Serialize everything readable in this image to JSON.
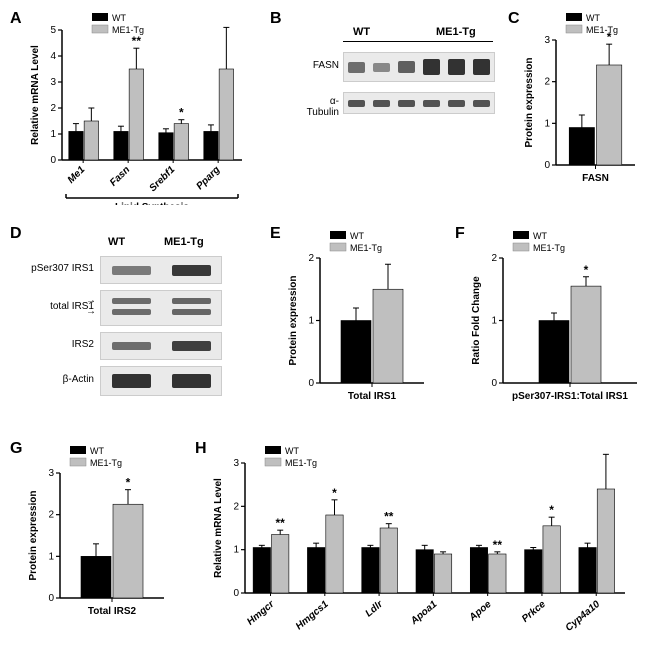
{
  "colors": {
    "wt": "#000000",
    "tg": "#bfbfbf",
    "axis": "#000000",
    "bg": "#ffffff"
  },
  "legend": {
    "wt": "WT",
    "tg": "ME1-Tg"
  },
  "panelA": {
    "label": "A",
    "ylabel": "Relative mRNA Level",
    "ymax": 5,
    "ytick": 1,
    "groups": [
      "Me1",
      "Fasn",
      "Srebf1",
      "Pparg"
    ],
    "group_label": "Lipid Synthesis",
    "wt": [
      1.1,
      1.1,
      1.05,
      1.1
    ],
    "tg": [
      1.5,
      3.5,
      1.4,
      3.5
    ],
    "wt_err": [
      0.3,
      0.2,
      0.15,
      0.25
    ],
    "tg_err": [
      0.5,
      0.8,
      0.15,
      1.6
    ],
    "sig": [
      "",
      "**",
      "*",
      ""
    ]
  },
  "panelB": {
    "label": "B",
    "groups": [
      "WT",
      "ME1-Tg"
    ],
    "rows": [
      "FASN",
      "α- Tubulin"
    ]
  },
  "panelC": {
    "label": "C",
    "ylabel": "Protein expression",
    "xlabel": "FASN",
    "ymax": 3,
    "ytick": 1,
    "wt": 0.9,
    "tg": 2.4,
    "wt_err": 0.3,
    "tg_err": 0.5,
    "sig": "*"
  },
  "panelD": {
    "label": "D",
    "groups": [
      "WT",
      "ME1-Tg"
    ],
    "rows": [
      "pSer307 IRS1",
      "total IRS1",
      "IRS2",
      "β-Actin"
    ]
  },
  "panelE": {
    "label": "E",
    "ylabel": "Protein expression",
    "xlabel": "Total IRS1",
    "ymax": 2,
    "ytick": 1,
    "wt": 1.0,
    "tg": 1.5,
    "wt_err": 0.2,
    "tg_err": 0.4,
    "sig": ""
  },
  "panelF": {
    "label": "F",
    "ylabel": "Ratio Fold Change",
    "xlabel": "pSer307-IRS1:Total IRS1",
    "ymax": 2,
    "ytick": 1,
    "wt": 1.0,
    "tg": 1.55,
    "wt_err": 0.12,
    "tg_err": 0.15,
    "sig": "*"
  },
  "panelG": {
    "label": "G",
    "ylabel": "Protein expression",
    "xlabel": "Total IRS2",
    "ymax": 3,
    "ytick": 1,
    "wt": 1.0,
    "tg": 2.25,
    "wt_err": 0.3,
    "tg_err": 0.35,
    "sig": "*"
  },
  "panelH": {
    "label": "H",
    "ylabel": "Relative mRNA Level",
    "ymax": 3,
    "ytick": 1,
    "groups": [
      "Hmgcr",
      "Hmgcs1",
      "Ldlr",
      "Apoa1",
      "Apoe",
      "Prkce",
      "Cyp4a10"
    ],
    "wt": [
      1.05,
      1.05,
      1.05,
      1.0,
      1.05,
      1.0,
      1.05
    ],
    "tg": [
      1.35,
      1.8,
      1.5,
      0.9,
      0.9,
      1.55,
      2.4
    ],
    "wt_err": [
      0.05,
      0.1,
      0.05,
      0.1,
      0.05,
      0.05,
      0.1
    ],
    "tg_err": [
      0.1,
      0.35,
      0.1,
      0.05,
      0.05,
      0.2,
      0.8
    ],
    "sig": [
      "**",
      "*",
      "**",
      "",
      "**",
      "*",
      ""
    ]
  }
}
